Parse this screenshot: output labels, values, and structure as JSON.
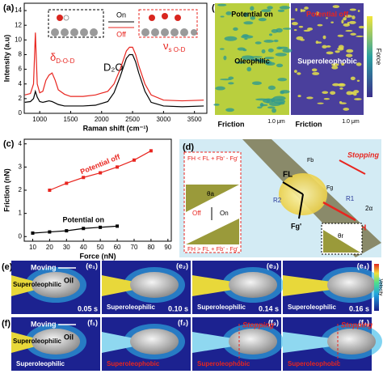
{
  "chart_data": [
    {
      "type": "line",
      "panel": "(a)",
      "xlabel": "Raman shift (cm⁻¹)",
      "ylabel": "Intensity (a.u)",
      "xlim": [
        750,
        3700
      ],
      "xticks": [
        1000,
        1500,
        2000,
        2500,
        3000,
        3500
      ],
      "ylim": [
        0,
        15
      ],
      "yticks": [
        0,
        2,
        4,
        6,
        8,
        10,
        12,
        14
      ],
      "markers": false,
      "series": [
        {
          "color": "#e8251f",
          "x": [
            760,
            850,
            900,
            930,
            960,
            1000,
            1050,
            1100,
            1150,
            1200,
            1250,
            1300,
            1400,
            1500,
            1700,
            1900,
            2100,
            2200,
            2300,
            2400,
            2450,
            2500,
            2550,
            2600,
            2700,
            2800,
            3000,
            3300,
            3650
          ],
          "values": [
            2.5,
            2.7,
            4,
            11,
            4,
            2.8,
            3,
            4.5,
            5.2,
            5.5,
            4.5,
            3.2,
            2.6,
            2.3,
            2.3,
            2.5,
            3,
            4,
            6,
            8.5,
            9,
            9,
            8,
            6.5,
            4,
            2.5,
            1.8,
            1.7,
            1.8
          ]
        },
        {
          "color": "#000000",
          "x": [
            760,
            850,
            900,
            930,
            960,
            1000,
            1050,
            1100,
            1150,
            1200,
            1250,
            1300,
            1400,
            1500,
            1700,
            1900,
            2100,
            2200,
            2300,
            2400,
            2450,
            2500,
            2550,
            2600,
            2700,
            2800,
            3000,
            3300,
            3650
          ],
          "values": [
            1.5,
            1.6,
            2,
            3,
            2.2,
            1.6,
            1.5,
            1.6,
            1.7,
            1.6,
            1.4,
            1.2,
            1,
            1,
            1,
            1.1,
            1.6,
            2.8,
            5,
            7.5,
            8,
            8,
            7,
            5.5,
            3,
            1.5,
            1,
            0.9,
            1
          ]
        }
      ],
      "annotations": {
        "delta": "δ",
        "delta_sub": "D-O-D",
        "nu": "ν",
        "nu_sub": "s O-D",
        "solvent": "D₂O",
        "on": "On",
        "off": "Off"
      }
    },
    {
      "type": "line",
      "panel": "(c)",
      "xlabel": "Force (nN)",
      "ylabel": "Friction (nN)",
      "xlim": [
        5,
        92
      ],
      "xticks": [
        10,
        20,
        30,
        40,
        50,
        60,
        70,
        80,
        90
      ],
      "ylim": [
        -0.2,
        4.2
      ],
      "yticks": [
        0,
        1,
        2,
        3,
        4
      ],
      "markers": true,
      "series": [
        {
          "name": "Potential off",
          "color": "#e8251f",
          "x": [
            20,
            30,
            40,
            50,
            60,
            70,
            80
          ],
          "values": [
            2.0,
            2.3,
            2.55,
            2.75,
            3.0,
            3.3,
            3.7
          ]
        },
        {
          "name": "Potential on",
          "color": "#000000",
          "x": [
            10,
            20,
            30,
            40,
            50,
            60
          ],
          "values": [
            0.15,
            0.2,
            0.25,
            0.35,
            0.4,
            0.45
          ]
        }
      ]
    }
  ],
  "panel_b": {
    "label": "(b)",
    "left_top": "Potential on",
    "right_top": "Potential off",
    "left_mid": "Oleophilic",
    "right_mid": "Superoleophobic",
    "left_bottom": "Friction",
    "left_scale": "1.0 μm",
    "right_bottom": "Friction",
    "right_scale": "1.0 μm",
    "colorbar": "Force"
  },
  "panel_d": {
    "label": "(d)",
    "eq_top": "FH < FL + Fb' - Fg'",
    "eq_bottom": "FH > FL + Fb' - Fg'",
    "off": "Off",
    "on": "On",
    "theta_a": "θa",
    "theta_r": "θr",
    "stopping": "Stopping",
    "fl": "FL",
    "fb": "Fb",
    "fg": "Fg",
    "fg2": "Fg'",
    "r1": "R1",
    "r2": "R2",
    "fh": "FH",
    "alpha": "2α"
  },
  "panel_e": {
    "label": "(e)",
    "moving": "Moving",
    "surface": "Superoleophilic",
    "oil": "Oil",
    "velocity": "Velocity",
    "frames": [
      {
        "tag": "(e₁)",
        "time": "0.05 s",
        "note": ""
      },
      {
        "tag": "(e₂)",
        "time": "0.10 s",
        "note": "Superoleophilic"
      },
      {
        "tag": "(e₃)",
        "time": "0.14 s",
        "note": "Superoleophilic"
      },
      {
        "tag": "(e₄)",
        "time": "0.16 s",
        "note": "Superoleophilic"
      }
    ]
  },
  "panel_f": {
    "label": "(f)",
    "moving": "Moving",
    "surface": "Superoleophilic",
    "oil": "Oil",
    "frames": [
      {
        "tag": "(f₁)",
        "note": "Superoleophilic"
      },
      {
        "tag": "(f₂)",
        "note": "Superoleophobic"
      },
      {
        "tag": "(f₃)",
        "note": "Superoleophobic"
      },
      {
        "tag": "(f₄)",
        "note": "Superoleophobic"
      }
    ],
    "stopping": "Stopping"
  }
}
